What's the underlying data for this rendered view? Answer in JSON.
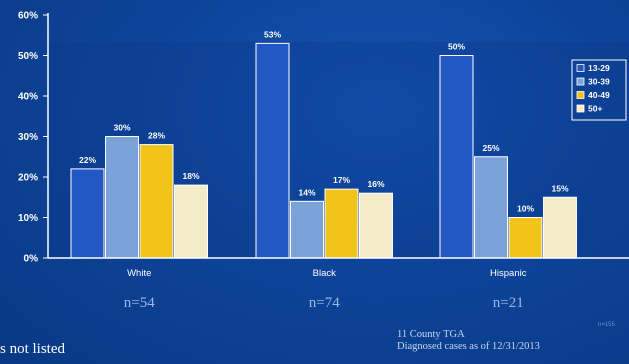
{
  "chart_data": {
    "type": "bar",
    "categories": [
      "White",
      "Black",
      "Hispanic"
    ],
    "sample_sizes": [
      "n=54",
      "n=74",
      "n=21"
    ],
    "series": [
      {
        "name": "13-29",
        "values": [
          22,
          53,
          50
        ],
        "color": "#2257c4"
      },
      {
        "name": "30-39",
        "values": [
          30,
          14,
          25
        ],
        "color": "#7aa3da"
      },
      {
        "name": "40-49",
        "values": [
          28,
          17,
          10
        ],
        "color": "#f2c419"
      },
      {
        "name": "50+",
        "values": [
          18,
          16,
          15
        ],
        "color": "#f4ecc9"
      }
    ],
    "data_labels": [
      [
        "22%",
        "30%",
        "28%",
        "18%"
      ],
      [
        "53%",
        "14%",
        "17%",
        "16%"
      ],
      [
        "50%",
        "25%",
        "10%",
        "15%"
      ]
    ],
    "ylim": [
      0,
      60
    ],
    "yticks": [
      0,
      10,
      20,
      30,
      40,
      50,
      60
    ],
    "ytick_labels": [
      "0%",
      "10%",
      "20%",
      "30%",
      "40%",
      "50%",
      "60%"
    ],
    "legend_position": "right",
    "grid": false
  },
  "footnotes": {
    "left": "s not listed",
    "right_line1": "11 County TGA",
    "right_line2": "Diagnosed cases as of 12/31/2013",
    "corner": "n=155"
  }
}
